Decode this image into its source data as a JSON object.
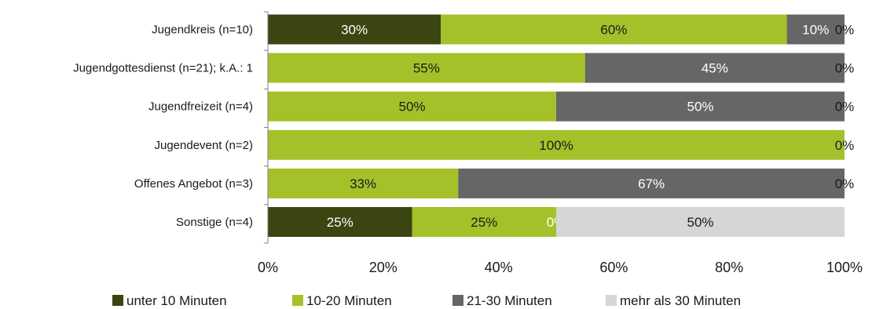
{
  "chart_data": {
    "type": "bar",
    "orientation": "horizontal",
    "stacked": true,
    "title": "",
    "xlabel": "",
    "ylabel": "",
    "xlim": [
      0,
      100
    ],
    "x_ticks": [
      "0%",
      "20%",
      "40%",
      "60%",
      "80%",
      "100%"
    ],
    "grid": false,
    "legend_position": "bottom",
    "categories": [
      "Jugendkreis (n=10)",
      "Jugendgottesdienst (n=21); k.A.: 1",
      "Jugendfreizeit (n=4)",
      "Jugendevent (n=2)",
      "Offenes Angebot (n=3)",
      "Sonstige (n=4)"
    ],
    "series": [
      {
        "name": "unter 10 Minuten",
        "color": "#3b4511",
        "label_color": "#ffffff",
        "values": [
          30,
          0,
          0,
          0,
          0,
          25
        ]
      },
      {
        "name": "10-20 Minuten",
        "color": "#a4c12a",
        "label_color": "#1a1a1a",
        "values": [
          60,
          55,
          50,
          100,
          33,
          25
        ]
      },
      {
        "name": "21-30 Minuten",
        "color": "#666666",
        "label_color": "#ffffff",
        "values": [
          10,
          45,
          50,
          0,
          67,
          0
        ]
      },
      {
        "name": "mehr als 30 Minuten",
        "color": "#d6d6d6",
        "label_color": "#1a1a1a",
        "values": [
          0,
          0,
          0,
          0,
          0,
          50
        ]
      }
    ]
  }
}
